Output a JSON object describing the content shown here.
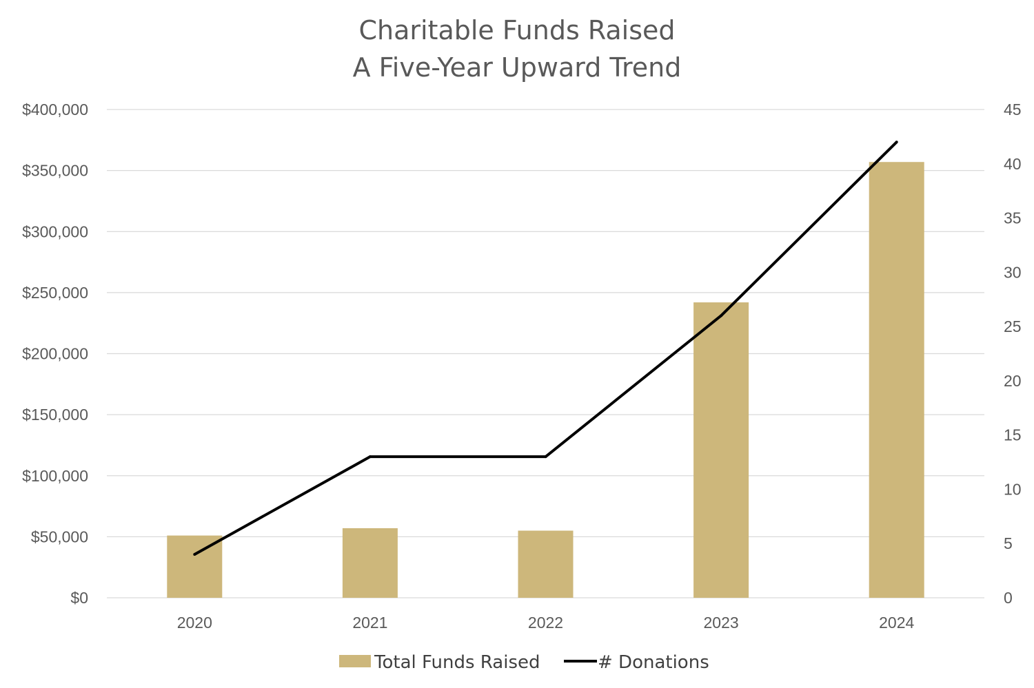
{
  "chart_data": {
    "type": "bar+line",
    "title": "Charitable Funds Raised",
    "subtitle": "A Five-Year Upward Trend",
    "categories": [
      "2020",
      "2021",
      "2022",
      "2023",
      "2024"
    ],
    "series": [
      {
        "name": "Total Funds Raised",
        "type": "bar",
        "axis": "left",
        "values": [
          51000,
          57000,
          55000,
          242000,
          357000
        ]
      },
      {
        "name": "# Donations",
        "type": "line",
        "axis": "right",
        "values": [
          4,
          13,
          13,
          26,
          42
        ]
      }
    ],
    "y_left": {
      "ylim": [
        0,
        400000
      ],
      "tick_labels": [
        "$0",
        "$50,000",
        "$100,000",
        "$150,000",
        "$200,000",
        "$250,000",
        "$300,000",
        "$350,000",
        "$400,000"
      ]
    },
    "y_right": {
      "ylim": [
        0,
        45
      ],
      "tick_labels": [
        "0",
        "5",
        "10",
        "15",
        "20",
        "25",
        "30",
        "35",
        "40",
        "45"
      ]
    },
    "grid": true,
    "legend_position": "bottom",
    "colors": {
      "bar": "#CDB77B",
      "line": "#000000",
      "grid": "#D9D9D9",
      "text": "#595959"
    }
  }
}
